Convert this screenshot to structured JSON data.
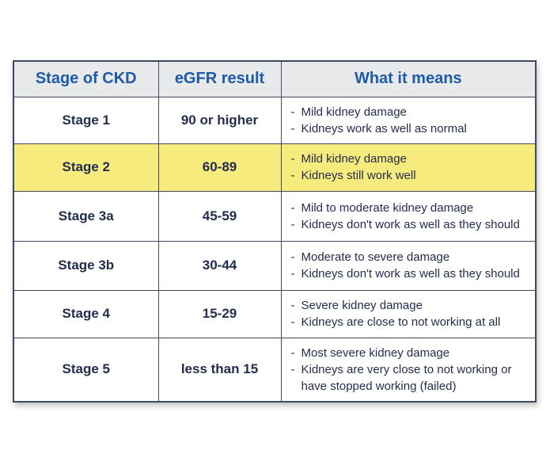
{
  "table": {
    "headers": [
      "Stage of CKD",
      "eGFR result",
      "What it means"
    ],
    "rows": [
      {
        "stage": "Stage 1",
        "egfr": "90 or higher",
        "meaning": [
          "Mild kidney damage",
          "Kidneys work as well as normal"
        ],
        "highlighted": false
      },
      {
        "stage": "Stage 2",
        "egfr": "60-89",
        "meaning": [
          "Mild kidney damage",
          "Kidneys still work well"
        ],
        "highlighted": true
      },
      {
        "stage": "Stage 3a",
        "egfr": "45-59",
        "meaning": [
          "Mild to moderate kidney damage",
          "Kidneys don't work as well as they should"
        ],
        "highlighted": false
      },
      {
        "stage": "Stage 3b",
        "egfr": "30-44",
        "meaning": [
          "Moderate to severe damage",
          "Kidneys don't work as well as they should"
        ],
        "highlighted": false
      },
      {
        "stage": "Stage 4",
        "egfr": "15-29",
        "meaning": [
          "Severe kidney damage",
          "Kidneys are close to not working at all"
        ],
        "highlighted": false
      },
      {
        "stage": "Stage 5",
        "egfr": "less than 15",
        "meaning": [
          "Most severe kidney damage",
          "Kidneys are very close to not working or have stopped working (failed)"
        ],
        "highlighted": false
      }
    ],
    "colors": {
      "header_text": "#1d5ba9",
      "body_text": "#232e4e",
      "highlight_bg": "#f6eb7c",
      "header_bg": "#e8e9ea",
      "border": "#3e4a5f"
    }
  }
}
